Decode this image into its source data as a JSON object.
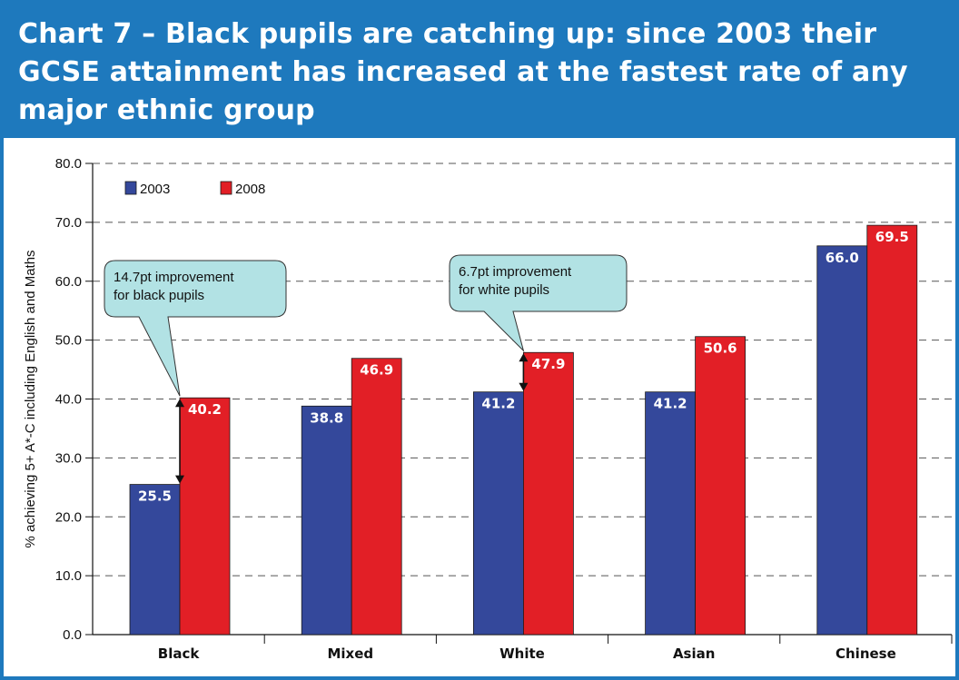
{
  "chart_data": {
    "type": "bar",
    "title": "Chart 7 – Black pupils are catching up: since 2003 their GCSE attainment has increased at the fastest rate of any major ethnic group",
    "ylabel": "% achieving 5+ A*-C including English and Maths",
    "xlabel": "",
    "ylim": [
      0,
      80
    ],
    "yticks": [
      "0.0",
      "10.0",
      "20.0",
      "30.0",
      "40.0",
      "50.0",
      "60.0",
      "70.0",
      "80.0"
    ],
    "grid": true,
    "legend_position": "top-left",
    "categories": [
      "Black",
      "Mixed",
      "White",
      "Asian",
      "Chinese"
    ],
    "series": [
      {
        "name": "2003",
        "color": "#34489b",
        "values": [
          25.5,
          38.8,
          41.2,
          41.2,
          66.0
        ],
        "labels": [
          "25.5",
          "38.8",
          "41.2",
          "41.2",
          "66.0"
        ]
      },
      {
        "name": "2008",
        "color": "#e21f26",
        "values": [
          40.2,
          46.9,
          47.9,
          50.6,
          69.5
        ],
        "labels": [
          "40.2",
          "46.9",
          "47.9",
          "50.6",
          "69.5"
        ]
      }
    ],
    "annotations": [
      {
        "category": "Black",
        "from": 25.5,
        "to": 40.2,
        "lines": [
          "14.7pt improvement",
          "for black pupils"
        ]
      },
      {
        "category": "White",
        "from": 41.2,
        "to": 47.9,
        "lines": [
          "6.7pt improvement",
          "for white pupils"
        ]
      }
    ],
    "callout_color": "#b2e2e4"
  }
}
